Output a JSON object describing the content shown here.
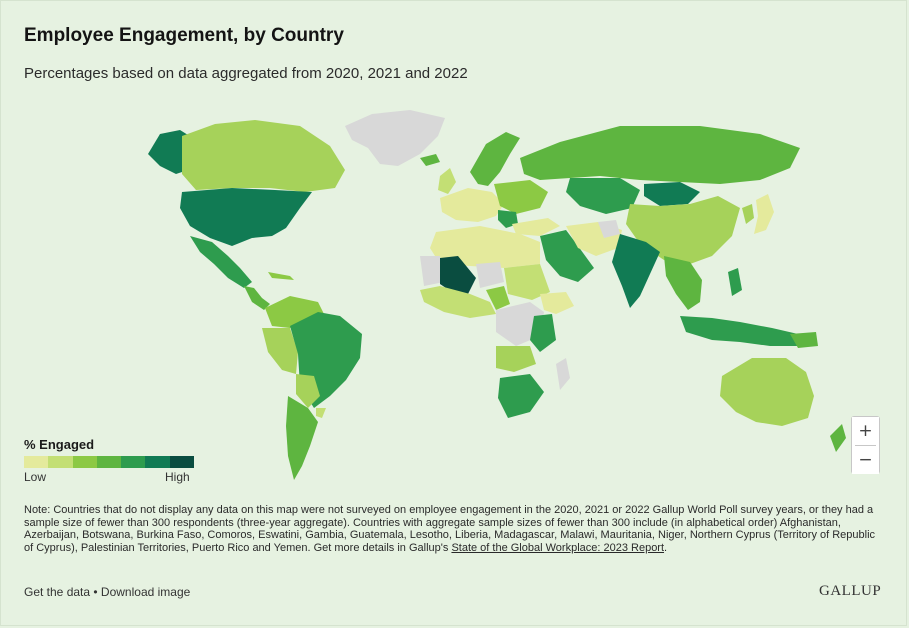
{
  "header": {
    "title": "Employee Engagement, by Country",
    "subtitle": "Percentages based on data aggregated from 2020, 2021 and 2022"
  },
  "legend": {
    "title": "% Engaged",
    "low": "Low",
    "high": "High",
    "colors": [
      "#e4ea9c",
      "#c3df74",
      "#8cc944",
      "#5eb540",
      "#2e9c4e",
      "#117b54",
      "#0a4d40"
    ]
  },
  "map": {
    "ocean_color": "#e6f2e1",
    "no_data_color": "#d8d8d8",
    "high_engagement_level": 1.0
  },
  "zoom": {
    "in": "+",
    "out": "−"
  },
  "note": {
    "text": "Note: Countries that do not display any data on this map were not surveyed on employee engagement in the 2020, 2021 or 2022 Gallup World Poll survey years, or they had a sample size of fewer than 300 respondents (three-year aggregate). Countries with aggregate sample sizes of fewer than 300 include (in alphabetical order) Afghanistan, Azerbaijan, Botswana, Burkina Faso, Comoros, Eswatini, Gambia, Guatemala, Lesotho, Liberia, Madagascar, Malawi, Mauritania, Niger, Northern Cyprus (Territory of Republic of Cyprus), Palestinian Territories, Puerto Rico and Yemen. Get more details in Gallup's ",
    "link": "State of the Global Workplace: 2023 Report",
    "end": "."
  },
  "footer": {
    "get_data": "Get the data",
    "separator": " • ",
    "download": "Download image",
    "brand": "GALLUP"
  }
}
